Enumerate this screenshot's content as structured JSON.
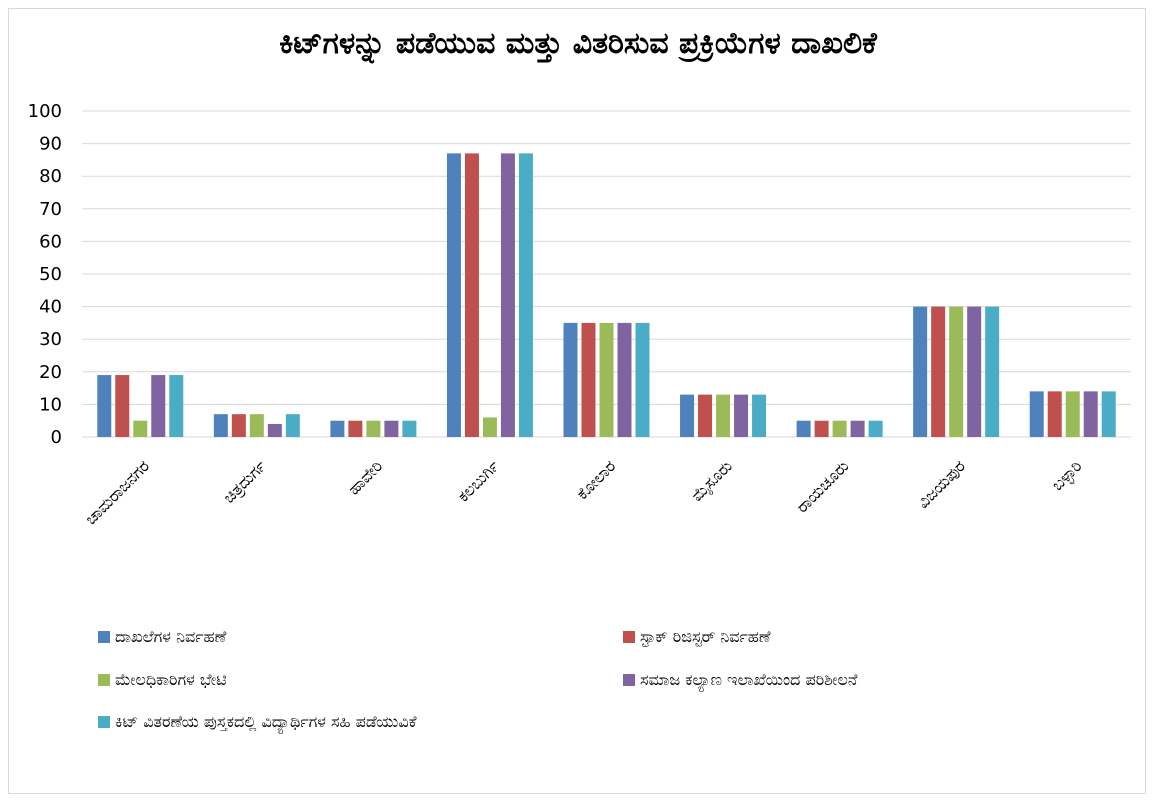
{
  "chart_data": {
    "type": "bar",
    "title": "ಕಿಟ್‌ಗಳನ್ನು ಪಡೆಯುವ ಮತ್ತು ವಿತರಿಸುವ ಪ್ರಕ್ರಿಯೆಗಳ ದಾಖಲಿಕೆ",
    "categories": [
      "ಚಾಮರಾಜನಗರ",
      "ಚಿತ್ರದುರ್ಗ",
      "ಹಾವೇರಿ",
      "ಕಲಬುರ್ಗಿ",
      "ಕೋಲಾರ",
      "ಮೈಸೂರು",
      "ರಾಯಚೂರು",
      "ವಿಜಯಪುರ",
      "ಬಳ್ಳಾರಿ"
    ],
    "ylim": [
      0,
      100
    ],
    "yticks": [
      0,
      10,
      20,
      30,
      40,
      50,
      60,
      70,
      80,
      90,
      100
    ],
    "grid": true,
    "legend_position": "bottom",
    "series": [
      {
        "name": "ದಾಖಲೆಗಳ ನಿರ್ವಹಣೆ",
        "color": "#4f81bd",
        "values": [
          19,
          7,
          5,
          87,
          35,
          13,
          5,
          40,
          14
        ]
      },
      {
        "name": "ಸ್ಟಾಕ್ ರಿಜಿಸ್ಟರ್ ನಿರ್ವಹಣೆ",
        "color": "#c0504d",
        "values": [
          19,
          7,
          5,
          87,
          35,
          13,
          5,
          40,
          14
        ]
      },
      {
        "name": "ಮೇಲಧಿಕಾರಿಗಳ ಭೇಟಿ",
        "color": "#9bbb59",
        "values": [
          5,
          7,
          5,
          6,
          35,
          13,
          5,
          40,
          14
        ]
      },
      {
        "name": "ಸಮಾಜ ಕಲ್ಯಾಣ ಇಲಾಖೆಯಿಂದ ಪರಿಶೀಲನೆ",
        "color": "#8064a2",
        "values": [
          19,
          4,
          5,
          87,
          35,
          13,
          5,
          40,
          14
        ]
      },
      {
        "name": "ಕಿಟ್ ವಿತರಣೆಯ ಪುಸ್ತಕದಲ್ಲಿ ವಿದ್ಯಾರ್ಥಿಗಳ ಸಹಿ ಪಡೆಯುವಿಕೆ",
        "color": "#4bacc6",
        "values": [
          19,
          7,
          5,
          87,
          35,
          13,
          5,
          40,
          14
        ]
      }
    ]
  }
}
